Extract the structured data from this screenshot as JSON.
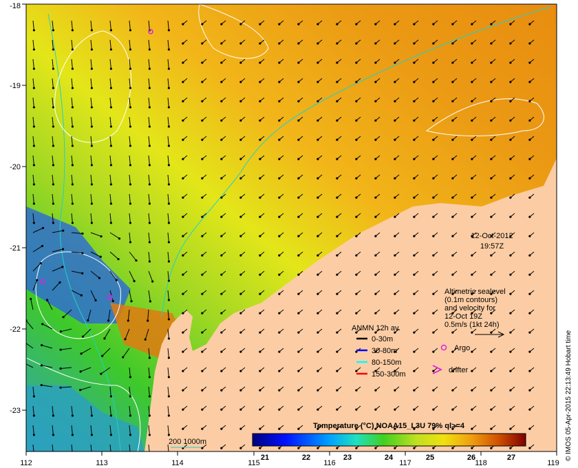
{
  "map": {
    "lon_range": [
      112,
      119
    ],
    "lat_range": [
      -23.5,
      -18
    ],
    "x_tick_labels": [
      "112",
      "113",
      "114",
      "115",
      "116",
      "117",
      "118",
      "119"
    ],
    "y_tick_labels": [
      "-18",
      "-19",
      "-20",
      "-21",
      "-22",
      "-23"
    ],
    "land_color": "#fccda4",
    "sea_colors": {
      "warm": "#e88d10",
      "mid": "#f2b619",
      "yellow": "#e3e619",
      "green": "#3ec92a",
      "cool": "#2e8fd1"
    }
  },
  "timestamp": {
    "date": "12-Oct-2012",
    "time": "19:57Z"
  },
  "altimetry_note": {
    "line1": "Altimetric sealevel",
    "line2": "(0.1m contours)",
    "line3": "and velocity for",
    "line4": "12-Oct 19Z",
    "line5": "0.5m/s (1kt 24h)"
  },
  "legend": {
    "title": "ANMN 12h av.",
    "items": [
      {
        "label": "0-30m",
        "color": "#000000"
      },
      {
        "label": "30-80m",
        "color": "#0000ff"
      },
      {
        "label": "80-150m",
        "color": "#00ffff"
      },
      {
        "label": "150-300m",
        "color": "#ff0000"
      }
    ],
    "argo_label": "Argo",
    "argo_color": "#e020e0",
    "drifter_label": "drifter",
    "drifter_color": "#e020e0"
  },
  "isobath_label": "200  1000m",
  "colorbar": {
    "title": "Temperature (°C) NOAA15_L3U 79% ql>=4",
    "ticks": [
      "21",
      "22",
      "23",
      "24",
      "25",
      "26",
      "27"
    ],
    "range": [
      20.7,
      27.3
    ]
  },
  "credit": "© IMOS 05-Apr-2015 22:13:49 Hobart time"
}
